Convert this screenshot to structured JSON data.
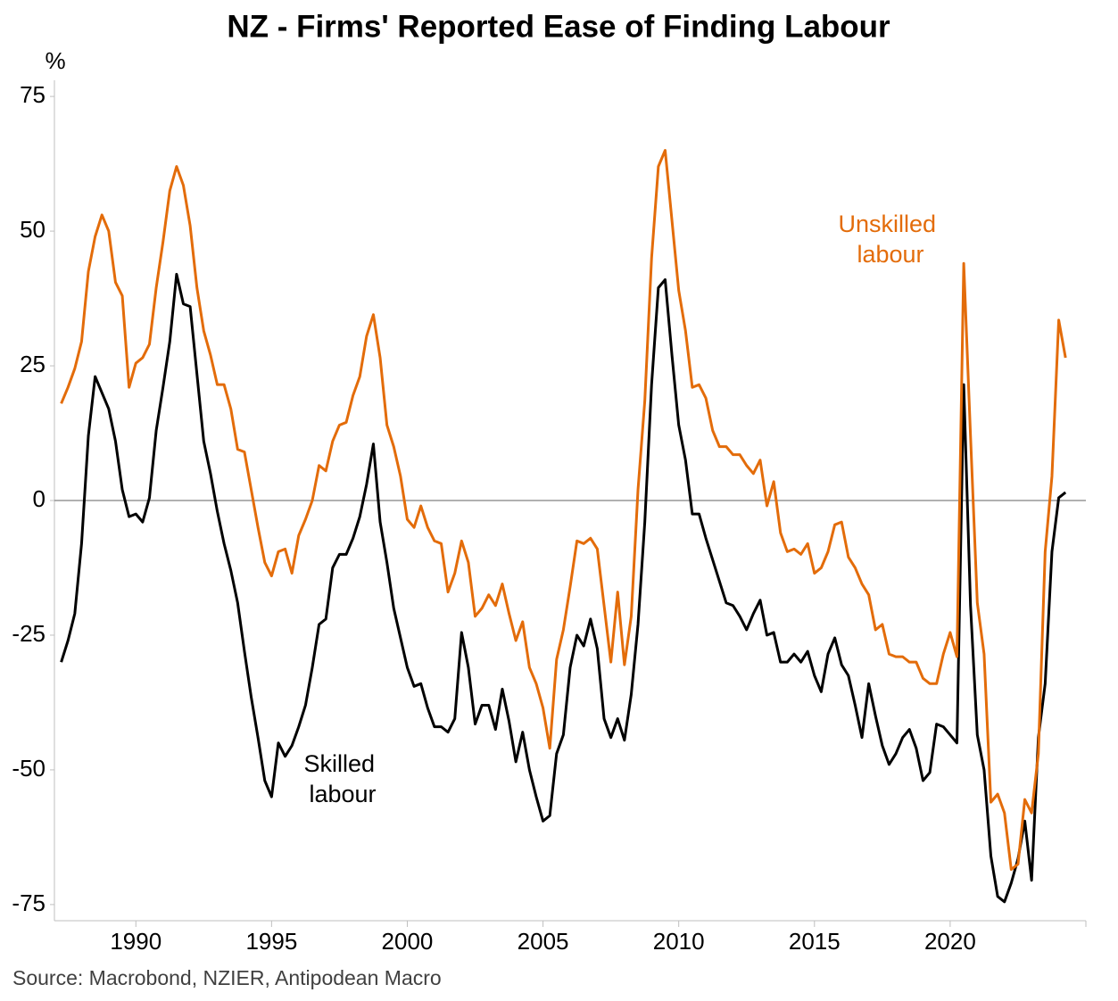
{
  "chart_data": {
    "type": "line",
    "title": "NZ - Firms' Reported Ease of Finding Labour",
    "y_unit": "%",
    "source": "Source: Macrobond, NZIER, Antipodean Macro",
    "x": [
      1987.25,
      1987.5,
      1987.75,
      1988,
      1988.25,
      1988.5,
      1988.75,
      1989,
      1989.25,
      1989.5,
      1989.75,
      1990,
      1990.25,
      1990.5,
      1990.75,
      1991,
      1991.25,
      1991.5,
      1991.75,
      1992,
      1992.25,
      1992.5,
      1992.75,
      1993,
      1993.25,
      1993.5,
      1993.75,
      1994,
      1994.25,
      1994.5,
      1994.75,
      1995,
      1995.25,
      1995.5,
      1995.75,
      1996,
      1996.25,
      1996.5,
      1996.75,
      1997,
      1997.25,
      1997.5,
      1997.75,
      1998,
      1998.25,
      1998.5,
      1998.75,
      1999,
      1999.25,
      1999.5,
      1999.75,
      2000,
      2000.25,
      2000.5,
      2000.75,
      2001,
      2001.25,
      2001.5,
      2001.75,
      2002,
      2002.25,
      2002.5,
      2002.75,
      2003,
      2003.25,
      2003.5,
      2003.75,
      2004,
      2004.25,
      2004.5,
      2004.75,
      2005,
      2005.25,
      2005.5,
      2005.75,
      2006,
      2006.25,
      2006.5,
      2006.75,
      2007,
      2007.25,
      2007.5,
      2007.75,
      2008,
      2008.25,
      2008.5,
      2008.75,
      2009,
      2009.25,
      2009.5,
      2009.75,
      2010,
      2010.25,
      2010.5,
      2010.75,
      2011,
      2011.25,
      2011.5,
      2011.75,
      2012,
      2012.25,
      2012.5,
      2012.75,
      2013,
      2013.25,
      2013.5,
      2013.75,
      2014,
      2014.25,
      2014.5,
      2014.75,
      2015,
      2015.25,
      2015.5,
      2015.75,
      2016,
      2016.25,
      2016.5,
      2016.75,
      2017,
      2017.25,
      2017.5,
      2017.75,
      2018,
      2018.25,
      2018.5,
      2018.75,
      2019,
      2019.25,
      2019.5,
      2019.75,
      2020,
      2020.25,
      2020.5,
      2020.75,
      2021,
      2021.25,
      2021.5,
      2021.75,
      2022,
      2022.25,
      2022.5,
      2022.75,
      2023,
      2023.25,
      2023.5,
      2023.75,
      2024,
      2024.25
    ],
    "series": [
      {
        "name": "Skilled labour",
        "color": "#000000",
        "values": [
          -30,
          -26,
          -21,
          -8,
          12,
          23,
          20,
          17,
          11,
          2,
          -3,
          -2.5,
          -4,
          0.5,
          13,
          21,
          29.5,
          42,
          36.5,
          36,
          23.5,
          11,
          5,
          -2,
          -8,
          -13,
          -19,
          -28,
          -36.5,
          -44,
          -52,
          -55,
          -45,
          -47.5,
          -45.5,
          -42,
          -38,
          -31,
          -23,
          -22,
          -12.5,
          -10,
          -10,
          -7,
          -3,
          3,
          10.5,
          -4,
          -11.5,
          -20,
          -25.5,
          -31,
          -34.5,
          -34,
          -38.5,
          -42,
          -42,
          -43,
          -40.5,
          -24.5,
          -31,
          -41.5,
          -38,
          -38,
          -42.5,
          -35,
          -41,
          -48.5,
          -43,
          -50,
          -55,
          -59.5,
          -58.5,
          -47,
          -43.5,
          -31,
          -25,
          -27,
          -22,
          -27.5,
          -40.5,
          -44,
          -40.5,
          -44.5,
          -36,
          -23,
          -4,
          21.5,
          39.5,
          41,
          27,
          14,
          7.5,
          -2.5,
          -2.5,
          -7,
          -11,
          -15,
          -19,
          -19.5,
          -21.5,
          -24,
          -21,
          -18.5,
          -25,
          -24.5,
          -30,
          -30,
          -28.5,
          -30,
          -28,
          -32.5,
          -35.5,
          -28.5,
          -25.5,
          -30.5,
          -32.5,
          -38,
          -44,
          -34,
          -40,
          -45.5,
          -49,
          -47,
          -44,
          -42.5,
          -46,
          -52,
          -50.5,
          -41.5,
          -42,
          -43.5,
          -45,
          21.5,
          -19.5,
          -43.5,
          -50,
          -66,
          -73.5,
          -74.5,
          -71,
          -66.5,
          -59.5,
          -70.5,
          -44,
          -34,
          -9.5,
          0.5,
          1.5
        ]
      },
      {
        "name": "Unskilled labour",
        "color": "#e36c0a",
        "values": [
          18,
          21,
          24.5,
          29.5,
          42.5,
          49,
          53,
          50,
          40.5,
          38,
          21,
          25.5,
          26.5,
          29,
          39.5,
          48,
          57.5,
          62,
          58.5,
          51,
          39.5,
          31.5,
          27,
          21.5,
          21.5,
          17,
          9.5,
          9,
          2,
          -5,
          -11.5,
          -14,
          -9.5,
          -9,
          -13.5,
          -6.5,
          -3.5,
          0,
          6.5,
          5.5,
          11,
          14,
          14.5,
          19.5,
          23,
          30.5,
          34.5,
          26.5,
          14,
          10,
          4.5,
          -3.5,
          -5,
          -1,
          -5,
          -7.5,
          -8,
          -17,
          -13.5,
          -7.5,
          -11.5,
          -21.5,
          -20,
          -17.5,
          -19.5,
          -15.5,
          -21,
          -26,
          -22.5,
          -31,
          -34,
          -38.5,
          -46,
          -29.5,
          -24,
          -16,
          -7.5,
          -8,
          -7,
          -9,
          -19.5,
          -30,
          -17,
          -30.5,
          -21.5,
          2,
          18.5,
          45,
          62,
          65,
          52,
          39,
          31.5,
          21,
          21.5,
          19,
          13,
          10,
          10,
          8.5,
          8.5,
          6.5,
          5,
          7.5,
          -1,
          3.5,
          -6,
          -9.5,
          -9,
          -10,
          -8,
          -13.5,
          -12.5,
          -9.5,
          -4.5,
          -4,
          -10.5,
          -12.5,
          -15.5,
          -17.5,
          -24,
          -23,
          -28.5,
          -29,
          -29,
          -30,
          -30,
          -33,
          -34,
          -34,
          -28.5,
          -24.5,
          -29,
          44,
          12,
          -19,
          -28.5,
          -56,
          -54.5,
          -58,
          -68.5,
          -67.5,
          -55.5,
          -58,
          -47,
          -9.5,
          4.5,
          33.5,
          26.5
        ]
      }
    ],
    "xlim": [
      1987,
      2025
    ],
    "xticks": [
      1990,
      1995,
      2000,
      2005,
      2010,
      2015,
      2020
    ],
    "ylim": [
      -78,
      78
    ],
    "yticks": [
      -75,
      -50,
      -25,
      0,
      25,
      50,
      75
    ],
    "zero_line": true
  }
}
